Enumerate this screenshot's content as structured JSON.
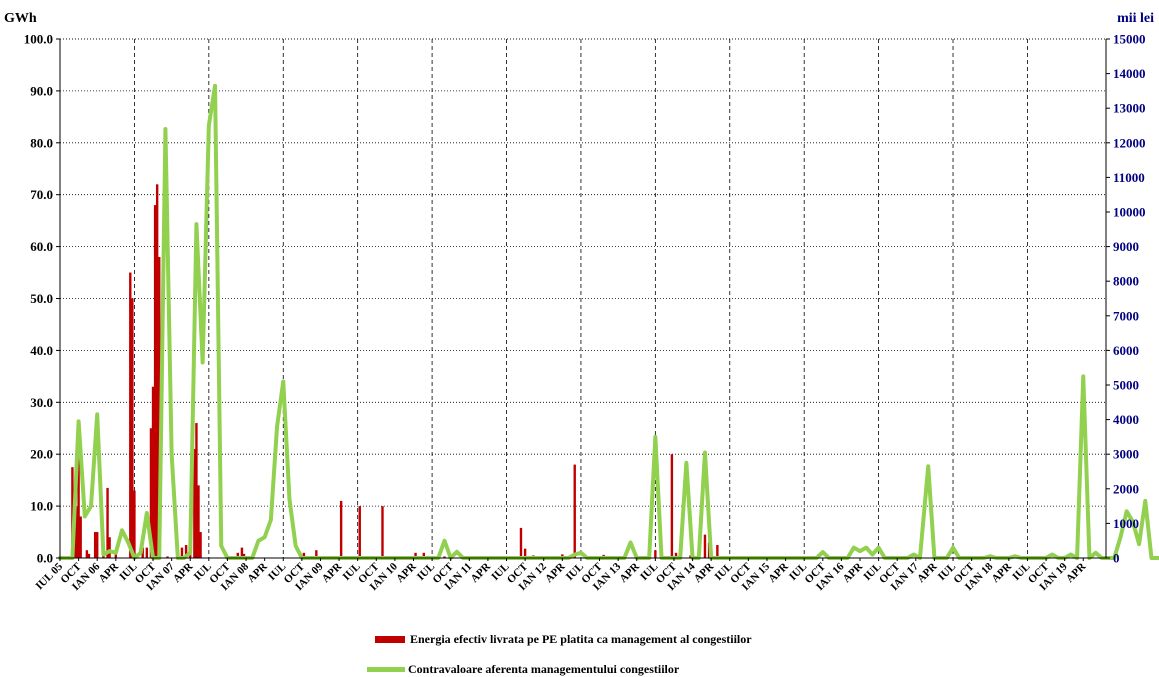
{
  "chart_data": {
    "type": "bar+line",
    "left_unit": "GWh",
    "right_unit": "mii lei",
    "ylim_left": [
      0,
      100
    ],
    "ylim_right": [
      0,
      15000
    ],
    "y_ticks_left": [
      "0.0",
      "10.0",
      "20.0",
      "30.0",
      "40.0",
      "50.0",
      "60.0",
      "70.0",
      "80.0",
      "90.0",
      "100.0"
    ],
    "y_ticks_right": [
      "0",
      "1000",
      "2000",
      "3000",
      "4000",
      "5000",
      "6000",
      "7000",
      "8000",
      "9000",
      "10000",
      "11000",
      "12000",
      "13000",
      "14000",
      "15000"
    ],
    "x_tick_labels": [
      "IUL 05",
      "OCT",
      "IAN 06",
      "APR",
      "IUL",
      "OCT",
      "IAN 07",
      "APR",
      "IUL",
      "OCT",
      "IAN 08",
      "APR",
      "IUL",
      "OCT",
      "IAN 09",
      "APR",
      "IUL",
      "OCT",
      "IAN 10",
      "APR",
      "IUL",
      "OCT",
      "IAN 11",
      "APR",
      "IUL",
      "OCT",
      "IAN 12",
      "APR",
      "IUL",
      "OCT",
      "IAN 13",
      "APR",
      "IUL",
      "OCT",
      "IAN 14",
      "APR",
      "IUL",
      "OCT",
      "IAN 15",
      "APR",
      "IUL",
      "OCT",
      "IAN 16",
      "APR",
      "IUL",
      "OCT",
      "IAN 17",
      "APR",
      "IUL",
      "OCT",
      "IAN 18",
      "APR",
      "IUL",
      "OCT",
      "IAN 19",
      "APR"
    ],
    "months": 167,
    "grid": true,
    "legend_position": "bottom",
    "bar_color": "#c00000",
    "line_color": "#92d050",
    "axis_label_color_right": "#000080",
    "series": [
      {
        "name": "Energia efectiv livrata pe PE platita ca management al congestiilor",
        "type": "bar",
        "axis": "left",
        "points": [
          [
            6,
            17.5
          ],
          [
            7,
            8
          ],
          [
            8,
            10
          ],
          [
            9,
            20
          ],
          [
            10,
            8
          ],
          [
            13,
            1.5
          ],
          [
            14,
            0.8
          ],
          [
            17,
            5
          ],
          [
            18,
            5
          ],
          [
            21,
            1.5
          ],
          [
            23,
            13.5
          ],
          [
            24,
            4
          ],
          [
            27,
            1
          ],
          [
            34,
            55
          ],
          [
            35,
            50
          ],
          [
            36,
            13
          ],
          [
            40,
            2
          ],
          [
            42,
            2
          ],
          [
            44,
            25
          ],
          [
            45,
            33
          ],
          [
            46,
            68
          ],
          [
            47,
            72
          ],
          [
            48,
            58
          ],
          [
            52,
            0.3
          ],
          [
            59,
            2
          ],
          [
            61,
            2.5
          ],
          [
            63,
            6
          ],
          [
            65,
            21
          ],
          [
            66,
            26
          ],
          [
            67,
            14
          ],
          [
            68,
            5
          ],
          [
            86,
            1
          ],
          [
            88,
            2
          ],
          [
            89,
            0.8
          ],
          [
            118,
            1
          ],
          [
            119,
            0.3
          ],
          [
            124,
            1.5
          ],
          [
            136,
            11
          ],
          [
            145,
            10
          ],
          [
            156,
            10
          ],
          [
            172,
            1
          ],
          [
            176,
            1
          ],
          [
            178,
            0.4
          ],
          [
            186,
            0.3
          ],
          [
            223,
            5.8
          ],
          [
            225,
            1.8
          ],
          [
            229,
            0.5
          ],
          [
            243,
            0.7
          ],
          [
            249,
            18
          ],
          [
            256,
            0.3
          ],
          [
            263,
            0.6
          ],
          [
            279,
            0.5
          ],
          [
            288,
            1.5
          ],
          [
            296,
            20
          ],
          [
            298,
            1
          ],
          [
            299,
            0.3
          ],
          [
            305,
            0.5
          ],
          [
            309,
            2
          ],
          [
            312,
            4.5
          ],
          [
            314,
            3
          ],
          [
            318,
            2.5
          ]
        ]
      },
      {
        "name": "Contravaloare aferenta managementului congestiilor",
        "type": "line",
        "axis": "right",
        "points": [
          [
            0,
            0
          ],
          [
            6,
            0
          ],
          [
            9,
            3950
          ],
          [
            12,
            1200
          ],
          [
            15,
            1500
          ],
          [
            18,
            4150
          ],
          [
            21,
            100
          ],
          [
            24,
            200
          ],
          [
            27,
            150
          ],
          [
            30,
            800
          ],
          [
            33,
            450
          ],
          [
            36,
            0
          ],
          [
            39,
            150
          ],
          [
            42,
            1300
          ],
          [
            45,
            0
          ],
          [
            48,
            0
          ],
          [
            51,
            12400
          ],
          [
            54,
            3000
          ],
          [
            57,
            0
          ],
          [
            60,
            0
          ],
          [
            63,
            150
          ],
          [
            66,
            9650
          ],
          [
            69,
            5650
          ],
          [
            72,
            12500
          ],
          [
            75,
            13650
          ],
          [
            78,
            350
          ],
          [
            81,
            0
          ],
          [
            84,
            0
          ],
          [
            87,
            0
          ],
          [
            90,
            0
          ],
          [
            93,
            0
          ],
          [
            96,
            500
          ],
          [
            99,
            600
          ],
          [
            102,
            1100
          ],
          [
            105,
            3800
          ],
          [
            108,
            5100
          ],
          [
            111,
            1700
          ],
          [
            114,
            350
          ],
          [
            117,
            0
          ],
          [
            120,
            0
          ],
          [
            183,
            0
          ],
          [
            186,
            500
          ],
          [
            189,
            0
          ],
          [
            192,
            180
          ],
          [
            195,
            0
          ],
          [
            246,
            0
          ],
          [
            249,
            100
          ],
          [
            252,
            150
          ],
          [
            255,
            0
          ],
          [
            273,
            0
          ],
          [
            276,
            450
          ],
          [
            279,
            0
          ],
          [
            282,
            0
          ],
          [
            285,
            0
          ],
          [
            288,
            3500
          ],
          [
            291,
            0
          ],
          [
            300,
            0
          ],
          [
            303,
            2750
          ],
          [
            306,
            0
          ],
          [
            309,
            0
          ],
          [
            312,
            3050
          ],
          [
            315,
            0
          ],
          [
            318,
            0
          ],
          [
            366,
            0
          ],
          [
            369,
            170
          ],
          [
            372,
            0
          ],
          [
            381,
            0
          ],
          [
            384,
            300
          ],
          [
            387,
            200
          ],
          [
            390,
            300
          ],
          [
            393,
            100
          ],
          [
            396,
            300
          ],
          [
            399,
            0
          ],
          [
            410,
            0
          ],
          [
            413,
            100
          ],
          [
            416,
            0
          ],
          [
            420,
            2650
          ],
          [
            423,
            0
          ],
          [
            429,
            0
          ],
          [
            432,
            300
          ],
          [
            435,
            0
          ],
          [
            447,
            0
          ],
          [
            450,
            50
          ],
          [
            453,
            0
          ],
          [
            459,
            0
          ],
          [
            462,
            50
          ],
          [
            465,
            0
          ],
          [
            477,
            0
          ],
          [
            480,
            100
          ],
          [
            483,
            0
          ],
          [
            486,
            0
          ],
          [
            489,
            100
          ],
          [
            492,
            0
          ],
          [
            495,
            5250
          ],
          [
            498,
            0
          ],
          [
            501,
            150
          ],
          [
            504,
            0
          ],
          [
            510,
            0
          ],
          [
            513,
            600
          ],
          [
            516,
            1350
          ],
          [
            519,
            1050
          ],
          [
            522,
            400
          ],
          [
            525,
            1650
          ],
          [
            528,
            0
          ],
          [
            536,
            0
          ]
        ]
      }
    ]
  }
}
